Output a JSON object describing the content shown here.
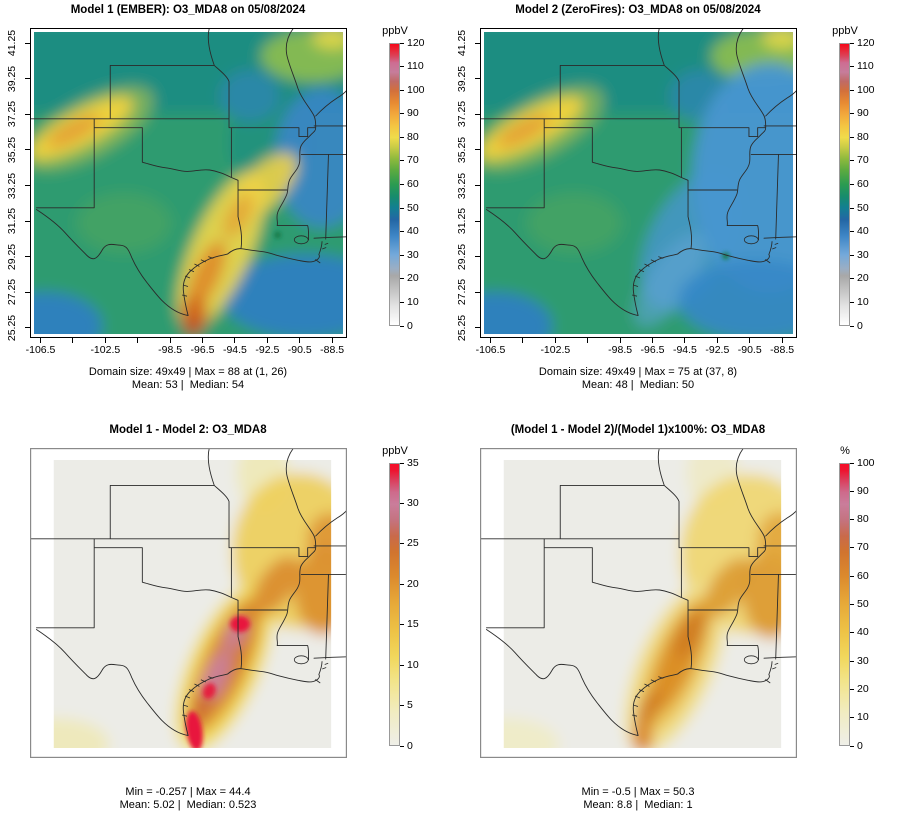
{
  "figure": {
    "background": "#FFFFFF",
    "variable": "O3_MDA8",
    "date": "05/08/2024",
    "panels": [
      {
        "id": "model1",
        "title": "Model 1 (EMBER): O3_MDA8 on 05/08/2024",
        "stats_line1": "Domain size: 49x49 | Max = 88 at (1, 26)",
        "stats_line2": "Mean: 53 |  Median: 54",
        "x_axis": {
          "ticks": [
            {
              "v": -106.5,
              "label": "-106.5"
            },
            {
              "v": -104.5,
              "label": ""
            },
            {
              "v": -102.5,
              "label": "-102.5"
            },
            {
              "v": -100.5,
              "label": ""
            },
            {
              "v": -98.5,
              "label": "-98.5"
            },
            {
              "v": -96.5,
              "label": "-96.5"
            },
            {
              "v": -94.5,
              "label": "-94.5"
            },
            {
              "v": -92.5,
              "label": "-92.5"
            },
            {
              "v": -90.5,
              "label": "-90.5"
            },
            {
              "v": -88.5,
              "label": "-88.5"
            }
          ]
        },
        "y_axis": {
          "ticks": [
            {
              "v": 41.25,
              "label": "41.25"
            },
            {
              "v": 39.25,
              "label": "39.25"
            },
            {
              "v": 37.25,
              "label": "37.25"
            },
            {
              "v": 35.25,
              "label": "35.25"
            },
            {
              "v": 33.25,
              "label": "33.25"
            },
            {
              "v": 31.25,
              "label": "31.25"
            },
            {
              "v": 29.25,
              "label": "29.25"
            },
            {
              "v": 27.25,
              "label": "27.25"
            },
            {
              "v": 25.25,
              "label": "25.25"
            }
          ]
        },
        "colorbar": {
          "unit": "ppbV",
          "min": 0,
          "max": 120,
          "step": 10,
          "gradient": [
            [
              0,
              "#FFFFFF"
            ],
            [
              8,
              "#E3E3E3"
            ],
            [
              16,
              "#BFBFBF"
            ],
            [
              21,
              "#A8A8A8"
            ],
            [
              24,
              "#9BAEC4"
            ],
            [
              30,
              "#74A9DA"
            ],
            [
              38,
              "#3E86C6"
            ],
            [
              45,
              "#2366A4"
            ],
            [
              50,
              "#137F92"
            ],
            [
              55,
              "#178C6C"
            ],
            [
              60,
              "#2B9B51"
            ],
            [
              66,
              "#5BAA40"
            ],
            [
              71,
              "#8FBA3E"
            ],
            [
              76,
              "#C9CC46"
            ],
            [
              80,
              "#F0DC4B"
            ],
            [
              85,
              "#F4C542"
            ],
            [
              90,
              "#F2A83C"
            ],
            [
              95,
              "#E78A32"
            ],
            [
              100,
              "#D3703B"
            ],
            [
              104,
              "#C06A66"
            ],
            [
              108,
              "#C67D9B"
            ],
            [
              112,
              "#CE6D92"
            ],
            [
              115,
              "#DC4258"
            ],
            [
              118,
              "#EC1F2F"
            ],
            [
              120,
              "#F5071A"
            ]
          ]
        }
      },
      {
        "id": "model2",
        "title": "Model 2 (ZeroFires): O3_MDA8 on 05/08/2024",
        "stats_line1": "Domain size: 49x49 | Max = 75 at (37, 8)",
        "stats_line2": "Mean: 48 |  Median: 50",
        "x_axis": {
          "ticks": [
            {
              "v": -106.5,
              "label": "-106.5"
            },
            {
              "v": -104.5,
              "label": ""
            },
            {
              "v": -102.5,
              "label": "-102.5"
            },
            {
              "v": -100.5,
              "label": ""
            },
            {
              "v": -98.5,
              "label": "-98.5"
            },
            {
              "v": -96.5,
              "label": "-96.5"
            },
            {
              "v": -94.5,
              "label": "-94.5"
            },
            {
              "v": -92.5,
              "label": "-92.5"
            },
            {
              "v": -90.5,
              "label": "-90.5"
            },
            {
              "v": -88.5,
              "label": "-88.5"
            }
          ]
        },
        "y_axis": {
          "ticks": [
            {
              "v": 41.25,
              "label": "41.25"
            },
            {
              "v": 39.25,
              "label": "39.25"
            },
            {
              "v": 37.25,
              "label": "37.25"
            },
            {
              "v": 35.25,
              "label": "35.25"
            },
            {
              "v": 33.25,
              "label": "33.25"
            },
            {
              "v": 31.25,
              "label": "31.25"
            },
            {
              "v": 29.25,
              "label": "29.25"
            },
            {
              "v": 27.25,
              "label": "27.25"
            },
            {
              "v": 25.25,
              "label": "25.25"
            }
          ]
        },
        "colorbar": {
          "unit": "ppbV",
          "min": 0,
          "max": 120,
          "step": 10,
          "gradient": [
            [
              0,
              "#FFFFFF"
            ],
            [
              8,
              "#E3E3E3"
            ],
            [
              16,
              "#BFBFBF"
            ],
            [
              21,
              "#A8A8A8"
            ],
            [
              24,
              "#9BAEC4"
            ],
            [
              30,
              "#74A9DA"
            ],
            [
              38,
              "#3E86C6"
            ],
            [
              45,
              "#2366A4"
            ],
            [
              50,
              "#137F92"
            ],
            [
              55,
              "#178C6C"
            ],
            [
              60,
              "#2B9B51"
            ],
            [
              66,
              "#5BAA40"
            ],
            [
              71,
              "#8FBA3E"
            ],
            [
              76,
              "#C9CC46"
            ],
            [
              80,
              "#F0DC4B"
            ],
            [
              85,
              "#F4C542"
            ],
            [
              90,
              "#F2A83C"
            ],
            [
              95,
              "#E78A32"
            ],
            [
              100,
              "#D3703B"
            ],
            [
              104,
              "#C06A66"
            ],
            [
              108,
              "#C67D9B"
            ],
            [
              112,
              "#CE6D92"
            ],
            [
              115,
              "#DC4258"
            ],
            [
              118,
              "#EC1F2F"
            ],
            [
              120,
              "#F5071A"
            ]
          ]
        }
      },
      {
        "id": "diff",
        "title": "Model 1 - Model 2: O3_MDA8",
        "stats_line1": "Min = -0.257 | Max = 44.4",
        "stats_line2": "Mean: 5.02 |  Median: 0.523",
        "x_axis": null,
        "y_axis": null,
        "colorbar": {
          "unit": "ppbV",
          "min": 0,
          "max": 35,
          "step": 5,
          "gradient": [
            [
              0,
              "#EFEFE8"
            ],
            [
              4,
              "#F1ECC2"
            ],
            [
              8,
              "#F2E489"
            ],
            [
              11,
              "#F1D75C"
            ],
            [
              14,
              "#EEC447"
            ],
            [
              18,
              "#E6A637"
            ],
            [
              21,
              "#DC8A2D"
            ],
            [
              24,
              "#D1742E"
            ],
            [
              26,
              "#C96A4A"
            ],
            [
              28,
              "#C4737F"
            ],
            [
              30,
              "#CA7D9B"
            ],
            [
              31.5,
              "#CE6A8B"
            ],
            [
              33,
              "#DC3D5B"
            ],
            [
              34.2,
              "#EE1430"
            ],
            [
              35,
              "#F50E28"
            ]
          ]
        }
      },
      {
        "id": "pctdiff",
        "title": "(Model 1 - Model 2)/(Model 1)x100%: O3_MDA8",
        "stats_line1": "Min = -0.5 | Max = 50.3",
        "stats_line2": "Mean: 8.8 |  Median: 1",
        "x_axis": null,
        "y_axis": null,
        "colorbar": {
          "unit": "%",
          "min": 0,
          "max": 100,
          "step": 10,
          "gradient": [
            [
              0,
              "#EFEFE8"
            ],
            [
              11.4,
              "#F1ECC2"
            ],
            [
              22.9,
              "#F2E489"
            ],
            [
              31.4,
              "#F1D75C"
            ],
            [
              40,
              "#EEC447"
            ],
            [
              51.4,
              "#E6A637"
            ],
            [
              60,
              "#DC8A2D"
            ],
            [
              68.6,
              "#D1742E"
            ],
            [
              74.3,
              "#C96A4A"
            ],
            [
              80,
              "#C4737F"
            ],
            [
              85.7,
              "#CA7D9B"
            ],
            [
              90,
              "#CE6A8B"
            ],
            [
              94.3,
              "#DC3D5B"
            ],
            [
              97.7,
              "#EE1430"
            ],
            [
              100,
              "#F50E28"
            ]
          ]
        }
      }
    ]
  },
  "chart_data": [
    {
      "type": "heatmap",
      "panel": "top-left",
      "title": "Model 1 (EMBER): O3_MDA8 on 05/08/2024",
      "variable": "O3_MDA8",
      "date": "05/08/2024",
      "units": "ppbV",
      "x_range": [
        -107.15,
        -87.4
      ],
      "y_range": [
        24.7,
        42.1
      ],
      "x_ticks_labeled": [
        -106.5,
        -102.5,
        -98.5,
        -96.5,
        -94.5,
        -92.5,
        -90.5,
        -88.5
      ],
      "y_ticks": [
        25.25,
        27.25,
        29.25,
        31.25,
        33.25,
        35.25,
        37.25,
        39.25,
        41.25
      ],
      "colorbar_range": [
        0,
        120
      ],
      "colorbar_ticks": [
        0,
        10,
        20,
        30,
        40,
        50,
        60,
        70,
        80,
        90,
        100,
        110,
        120
      ],
      "domain_size": "49x49",
      "max": 88,
      "max_at": "(1, 26)",
      "mean": 53,
      "median": 54
    },
    {
      "type": "heatmap",
      "panel": "top-right",
      "title": "Model 2 (ZeroFires): O3_MDA8 on 05/08/2024",
      "variable": "O3_MDA8",
      "date": "05/08/2024",
      "units": "ppbV",
      "x_range": [
        -107.15,
        -87.4
      ],
      "y_range": [
        24.7,
        42.1
      ],
      "x_ticks_labeled": [
        -106.5,
        -102.5,
        -98.5,
        -96.5,
        -94.5,
        -92.5,
        -90.5,
        -88.5
      ],
      "y_ticks": [
        25.25,
        27.25,
        29.25,
        31.25,
        33.25,
        35.25,
        37.25,
        39.25,
        41.25
      ],
      "colorbar_range": [
        0,
        120
      ],
      "colorbar_ticks": [
        0,
        10,
        20,
        30,
        40,
        50,
        60,
        70,
        80,
        90,
        100,
        110,
        120
      ],
      "domain_size": "49x49",
      "max": 75,
      "max_at": "(37, 8)",
      "mean": 48,
      "median": 50
    },
    {
      "type": "heatmap",
      "panel": "bottom-left",
      "title": "Model 1 - Model 2: O3_MDA8",
      "variable": "O3_MDA8",
      "units": "ppbV",
      "colorbar_range": [
        0,
        35
      ],
      "colorbar_ticks": [
        0,
        5,
        10,
        15,
        20,
        25,
        30,
        35
      ],
      "min": -0.257,
      "max": 44.4,
      "mean": 5.02,
      "median": 0.523
    },
    {
      "type": "heatmap",
      "panel": "bottom-right",
      "title": "(Model 1 - Model 2)/(Model 1)x100%: O3_MDA8",
      "variable": "O3_MDA8",
      "units": "%",
      "colorbar_range": [
        0,
        100
      ],
      "colorbar_ticks": [
        0,
        10,
        20,
        30,
        40,
        50,
        60,
        70,
        80,
        90,
        100
      ],
      "min": -0.5,
      "max": 50.3,
      "mean": 8.8,
      "median": 1
    }
  ]
}
